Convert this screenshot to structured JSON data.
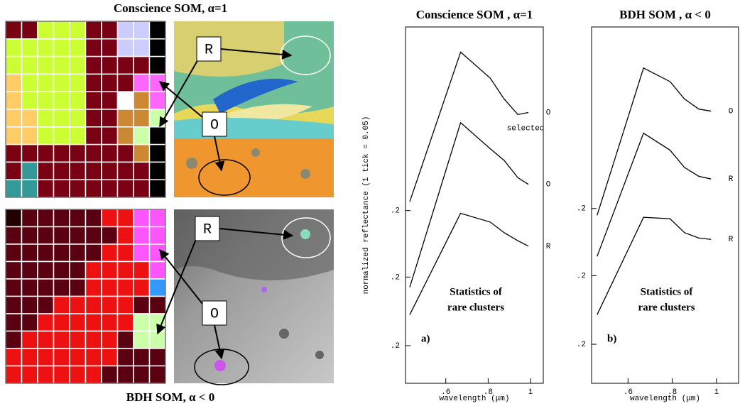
{
  "figure": {
    "top_title": "Conscience SOM, α=1",
    "bottom_title": "BDH SOM, α < 0",
    "map_labels": [
      "R",
      "O",
      "R",
      "O"
    ]
  },
  "chart_data": [
    {
      "type": "line",
      "title": "Conscience SOM , α=1",
      "xlabel": "wavelength (μm)",
      "ylabel": "normalized reflectance (1 tick = 0.05)",
      "annotation": [
        "Statistics of",
        "rare clusters"
      ],
      "panel_label": "a)",
      "curve_note": "selected",
      "x": [
        0.43,
        0.67,
        0.81,
        0.875,
        0.94,
        0.99
      ],
      "xlim": [
        0.41,
        1.06
      ],
      "xticks": [
        {
          "value": 0.6,
          "label": ".6"
        },
        {
          "value": 0.8,
          "label": ".8"
        },
        1
      ],
      "ylim": [
        0,
        10.5
      ],
      "yticks": [
        {
          "value": 5.09,
          "label": ".2"
        },
        {
          "value": 3.13,
          "label": ".2"
        },
        {
          "value": 1.11,
          "label": ".2"
        }
      ],
      "series": [
        {
          "name": "O",
          "color": "#000000",
          "values": [
            5.35,
            9.76,
            8.99,
            8.38,
            7.92,
            7.98
          ]
        },
        {
          "name": "O",
          "color": "#000000",
          "values": [
            2.83,
            7.68,
            6.91,
            6.57,
            6.06,
            5.86
          ]
        },
        {
          "name": "R",
          "color": "#000000",
          "values": [
            2.02,
            5.01,
            4.75,
            4.44,
            4.2,
            4.04
          ]
        }
      ]
    },
    {
      "type": "line",
      "title": "BDH SOM , α < 0",
      "xlabel": "wavelength (μm)",
      "annotation": [
        "Statistics of",
        "rare clusters"
      ],
      "panel_label": "b)",
      "x": [
        0.46,
        0.67,
        0.79,
        0.855,
        0.92,
        0.975
      ],
      "xlim": [
        0.435,
        1.1
      ],
      "xticks": [
        {
          "value": 0.6,
          "label": ".6"
        },
        {
          "value": 0.8,
          "label": ".8"
        },
        1
      ],
      "ylim": [
        0,
        10.5
      ],
      "yticks": [
        {
          "value": 5.15,
          "label": ".2"
        },
        {
          "value": 3.17,
          "label": ".2"
        },
        {
          "value": 1.15,
          "label": ".2"
        }
      ],
      "series": [
        {
          "name": "O",
          "color": "#000000",
          "values": [
            4.95,
            9.29,
            8.89,
            8.38,
            8.08,
            8.02
          ]
        },
        {
          "name": "R",
          "color": "#000000",
          "values": [
            3.74,
            7.37,
            6.87,
            6.36,
            6.1,
            6.02
          ]
        },
        {
          "name": "R",
          "color": "#000000",
          "values": [
            2.02,
            4.89,
            4.85,
            4.44,
            4.28,
            4.24
          ]
        }
      ]
    }
  ]
}
